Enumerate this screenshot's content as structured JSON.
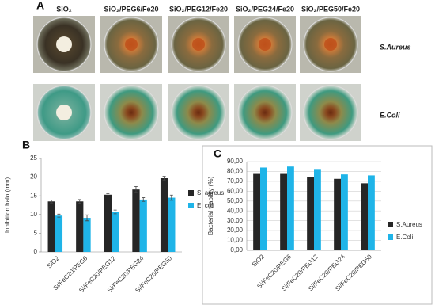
{
  "panel_a": {
    "label": "A",
    "columns": [
      "SiO₂",
      "SiO₂/PEG6/Fe20",
      "SiO₂/PEG12/Fe20",
      "SiO₂/PEG24/Fe20",
      "SiO₂/PEG50/Fe20"
    ],
    "rows": [
      "S.Aureus",
      "E.Coli"
    ]
  },
  "chart_data": [
    {
      "type": "bar",
      "panel_label": "B",
      "y_label": "Inhibition halo (mm)",
      "categories": [
        "SiO2",
        "Si/FeC20/PEG6",
        "Si/FeC20/PEG12",
        "Si/FeC20/PEG24",
        "Si/FeC20/PEG50"
      ],
      "series": [
        {
          "name": "S. aureus",
          "color": "#262626",
          "values": [
            13.5,
            13.5,
            15.3,
            16.7,
            19.7
          ],
          "errors": [
            0.4,
            0.5,
            0.3,
            0.8,
            0.5
          ]
        },
        {
          "name": "E. coli",
          "color": "#1fb4e8",
          "values": [
            9.7,
            9.1,
            10.7,
            14.0,
            14.5
          ],
          "errors": [
            0.4,
            0.8,
            0.5,
            0.5,
            0.7
          ]
        }
      ],
      "ylim": [
        0,
        25
      ],
      "yticks": [
        0,
        5,
        10,
        15,
        20,
        25
      ],
      "grid": false,
      "legend": "right"
    },
    {
      "type": "bar",
      "panel_label": "C",
      "y_label": "Bacterial viability (%)",
      "categories": [
        "SiO2",
        "Si/FeC20/PEG6",
        "Si/FeC20/PEG12",
        "Si/FeC20/PEG24",
        "Si/FeC20/PEG50"
      ],
      "series": [
        {
          "name": "S.Aureus",
          "color": "#262626",
          "values": [
            77.5,
            77.5,
            74.5,
            72.5,
            68
          ]
        },
        {
          "name": "E.Coli",
          "color": "#1fb4e8",
          "values": [
            84,
            85,
            82.5,
            77,
            76
          ]
        }
      ],
      "ylim": [
        0,
        90
      ],
      "yticks": [
        {
          "value": 0,
          "label": "0,00"
        },
        {
          "value": 10,
          "label": "10,00"
        },
        {
          "value": 20,
          "label": "20,00"
        },
        {
          "value": 30,
          "label": "30,00"
        },
        {
          "value": 40,
          "label": "40,00"
        },
        {
          "value": 50,
          "label": "50,00"
        },
        {
          "value": 60,
          "label": "60,00"
        },
        {
          "value": 70,
          "label": "70,00"
        },
        {
          "value": 80,
          "label": "80,00"
        },
        {
          "value": 90,
          "label": "90,00"
        }
      ],
      "grid": true,
      "legend": "right"
    }
  ]
}
